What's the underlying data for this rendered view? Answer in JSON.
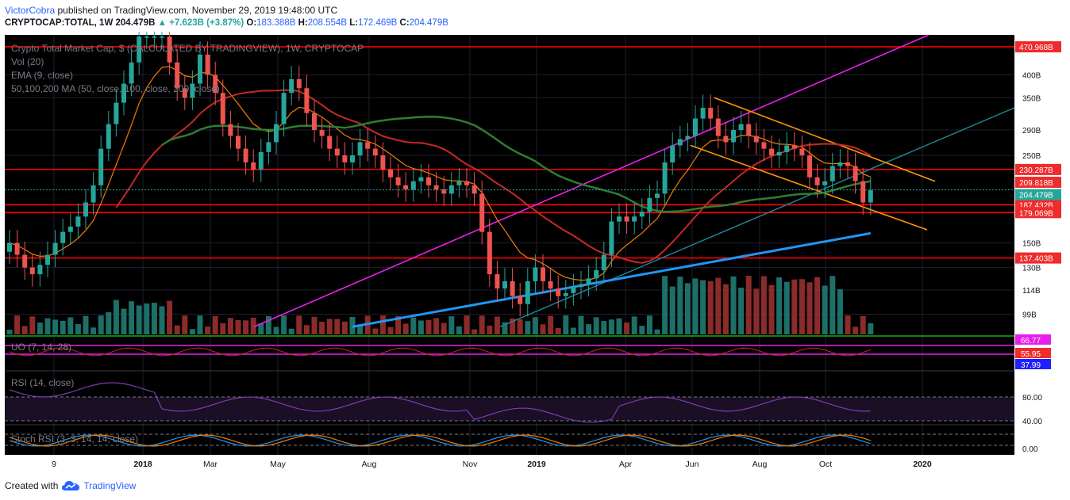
{
  "header": {
    "author": "VictorCobra",
    "published": "published on TradingView.com, November 29, 2019 19:48:00 UTC"
  },
  "ticker": {
    "symbol": "CRYPTOCAP:TOTAL, 1W",
    "last": "204.479B",
    "change_arrow": "▲",
    "change": "+7.623B (+3.87%)",
    "o_label": "O:",
    "o": "183.388B",
    "h_label": "H:",
    "h": "208.554B",
    "l_label": "L:",
    "l": "172.469B",
    "c_label": "C:",
    "c": "204.479B"
  },
  "legend": {
    "title": "Crypto Total Market Cap, $ (CALCULATED BY TRADINGVIEW), 1W, CRYPTOCAP",
    "vol": "Vol (20)",
    "ema": "EMA (9, close)",
    "ma": "50,100,200 MA (50, close, 100, close, 200, close)",
    "uo": "UO (7, 14, 28)",
    "rsi": "RSI (14, close)",
    "stoch": "Stoch RSI (3, 3, 14, 14, close)"
  },
  "colors": {
    "bg": "#000000",
    "up": "#26a69a",
    "down": "#ef5350",
    "ema": "#f57c00",
    "ma50": "#c62828",
    "ma100": "#2e7d32",
    "ma200": "#2196f3",
    "hline": "#ff0000",
    "magenta": "#e91eec",
    "teal": "#1c8a9a",
    "channel": "#ff9800"
  },
  "chart_data": {
    "type": "candlestick",
    "title": "Crypto Total Market Cap, $ (CALCULATED BY TRADINGVIEW), 1W, CRYPTOCAP",
    "y_scale": "log",
    "ylim": [
      88,
      505
    ],
    "y_ticks": [
      "400B",
      "350B",
      "290B",
      "250B",
      "150B",
      "130B",
      "114B",
      "99B"
    ],
    "x_ticks": [
      "9",
      "2018",
      "Mar",
      "May",
      "Aug",
      "Nov",
      "2019",
      "Apr",
      "Jun",
      "Aug",
      "Oct",
      "2020"
    ],
    "horizontal_levels": [
      {
        "label": "470.968B",
        "value": 470.968
      },
      {
        "label": "230.287B",
        "value": 230.287
      },
      {
        "label": "187.432B",
        "value": 187.432
      },
      {
        "label": "179.069B",
        "value": 179.069
      },
      {
        "label": "137.403B",
        "value": 137.403
      }
    ],
    "price_labels": [
      {
        "label": "209.818B",
        "value": 209.818
      },
      {
        "label": "204.479B",
        "value": 204.479,
        "current": true
      }
    ],
    "candles_close_approx": [
      150,
      140,
      130,
      125,
      132,
      140,
      150,
      160,
      165,
      175,
      190,
      210,
      260,
      300,
      340,
      380,
      430,
      500,
      500,
      500,
      500,
      430,
      370,
      350,
      380,
      450,
      400,
      360,
      300,
      280,
      260,
      240,
      230,
      255,
      270,
      300,
      360,
      390,
      370,
      320,
      290,
      280,
      260,
      250,
      240,
      250,
      270,
      260,
      250,
      230,
      220,
      210,
      205,
      215,
      220,
      210,
      205,
      200,
      210,
      215,
      210,
      200,
      160,
      125,
      115,
      120,
      110,
      105,
      120,
      130,
      120,
      115,
      110,
      112,
      116,
      118,
      122,
      128,
      140,
      170,
      175,
      170,
      175,
      180,
      195,
      200,
      240,
      265,
      275,
      280,
      310,
      330,
      310,
      280,
      270,
      290,
      300,
      280,
      270,
      260,
      250,
      255,
      265,
      260,
      250,
      220,
      210,
      215,
      235,
      240,
      235,
      215,
      190,
      204
    ]
  },
  "indicators": {
    "uo_labels": [
      "66.77",
      "55.95",
      "37.99"
    ],
    "rsi_labels": [
      "80.00",
      "40.00"
    ],
    "stoch_labels": [
      "0.00"
    ]
  },
  "footer": {
    "created_with": "Created with",
    "brand": "TradingView"
  }
}
